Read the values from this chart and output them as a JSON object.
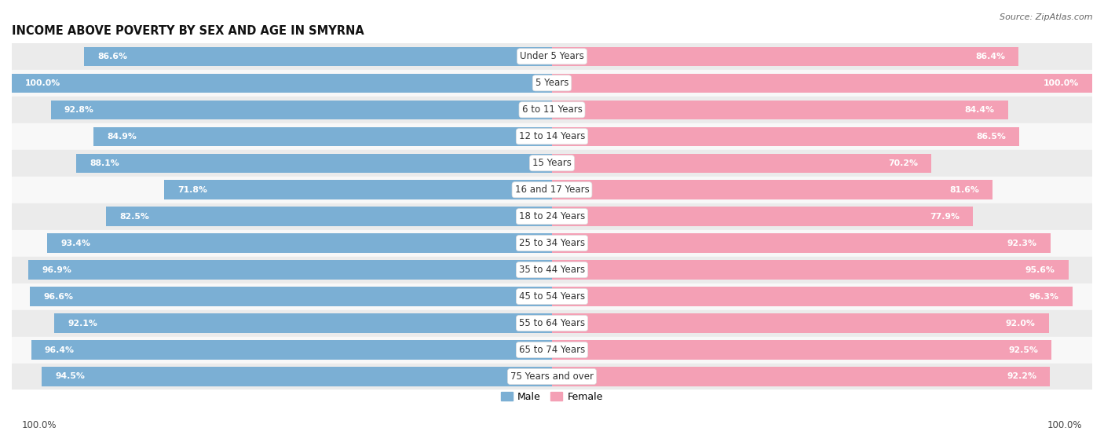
{
  "title": "INCOME ABOVE POVERTY BY SEX AND AGE IN SMYRNA",
  "source": "Source: ZipAtlas.com",
  "categories": [
    "Under 5 Years",
    "5 Years",
    "6 to 11 Years",
    "12 to 14 Years",
    "15 Years",
    "16 and 17 Years",
    "18 to 24 Years",
    "25 to 34 Years",
    "35 to 44 Years",
    "45 to 54 Years",
    "55 to 64 Years",
    "65 to 74 Years",
    "75 Years and over"
  ],
  "male_values": [
    86.6,
    100.0,
    92.8,
    84.9,
    88.1,
    71.8,
    82.5,
    93.4,
    96.9,
    96.6,
    92.1,
    96.4,
    94.5
  ],
  "female_values": [
    86.4,
    100.0,
    84.4,
    86.5,
    70.2,
    81.6,
    77.9,
    92.3,
    95.6,
    96.3,
    92.0,
    92.5,
    92.2
  ],
  "male_color": "#7bafd4",
  "female_color": "#f4a0b5",
  "male_label": "Male",
  "female_label": "Female",
  "axis_max": 100.0,
  "bar_height": 0.72,
  "bg_color": "#ffffff",
  "row_bg_even": "#ebebeb",
  "row_bg_odd": "#f8f8f8",
  "title_fontsize": 10.5,
  "label_fontsize": 8.5,
  "value_fontsize": 7.8,
  "source_fontsize": 8.0
}
